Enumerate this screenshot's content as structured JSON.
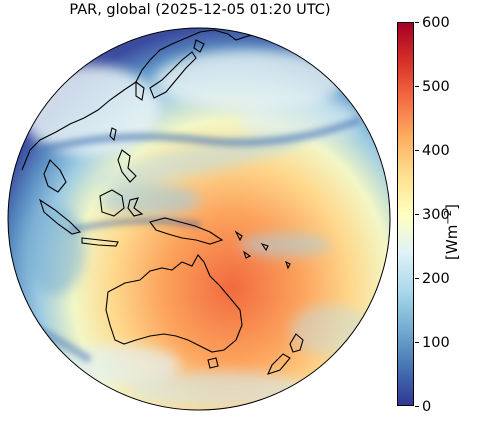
{
  "title": "PAR, global (2025-12-05 01:20 UTC)",
  "colorbar": {
    "label_text": "[Wm",
    "label_exp": "−2",
    "label_close": "]",
    "ticks": [
      "0",
      "100",
      "200",
      "300",
      "400",
      "500",
      "600"
    ],
    "min": 0,
    "max": 600,
    "colormap": "RdYlBu_r"
  },
  "map": {
    "projection": "geostationary full disk",
    "field": "Photosynthetically active radiation",
    "colors": {
      "low": "#313695",
      "mid": "#ffffbf",
      "high": "#a50026"
    }
  }
}
